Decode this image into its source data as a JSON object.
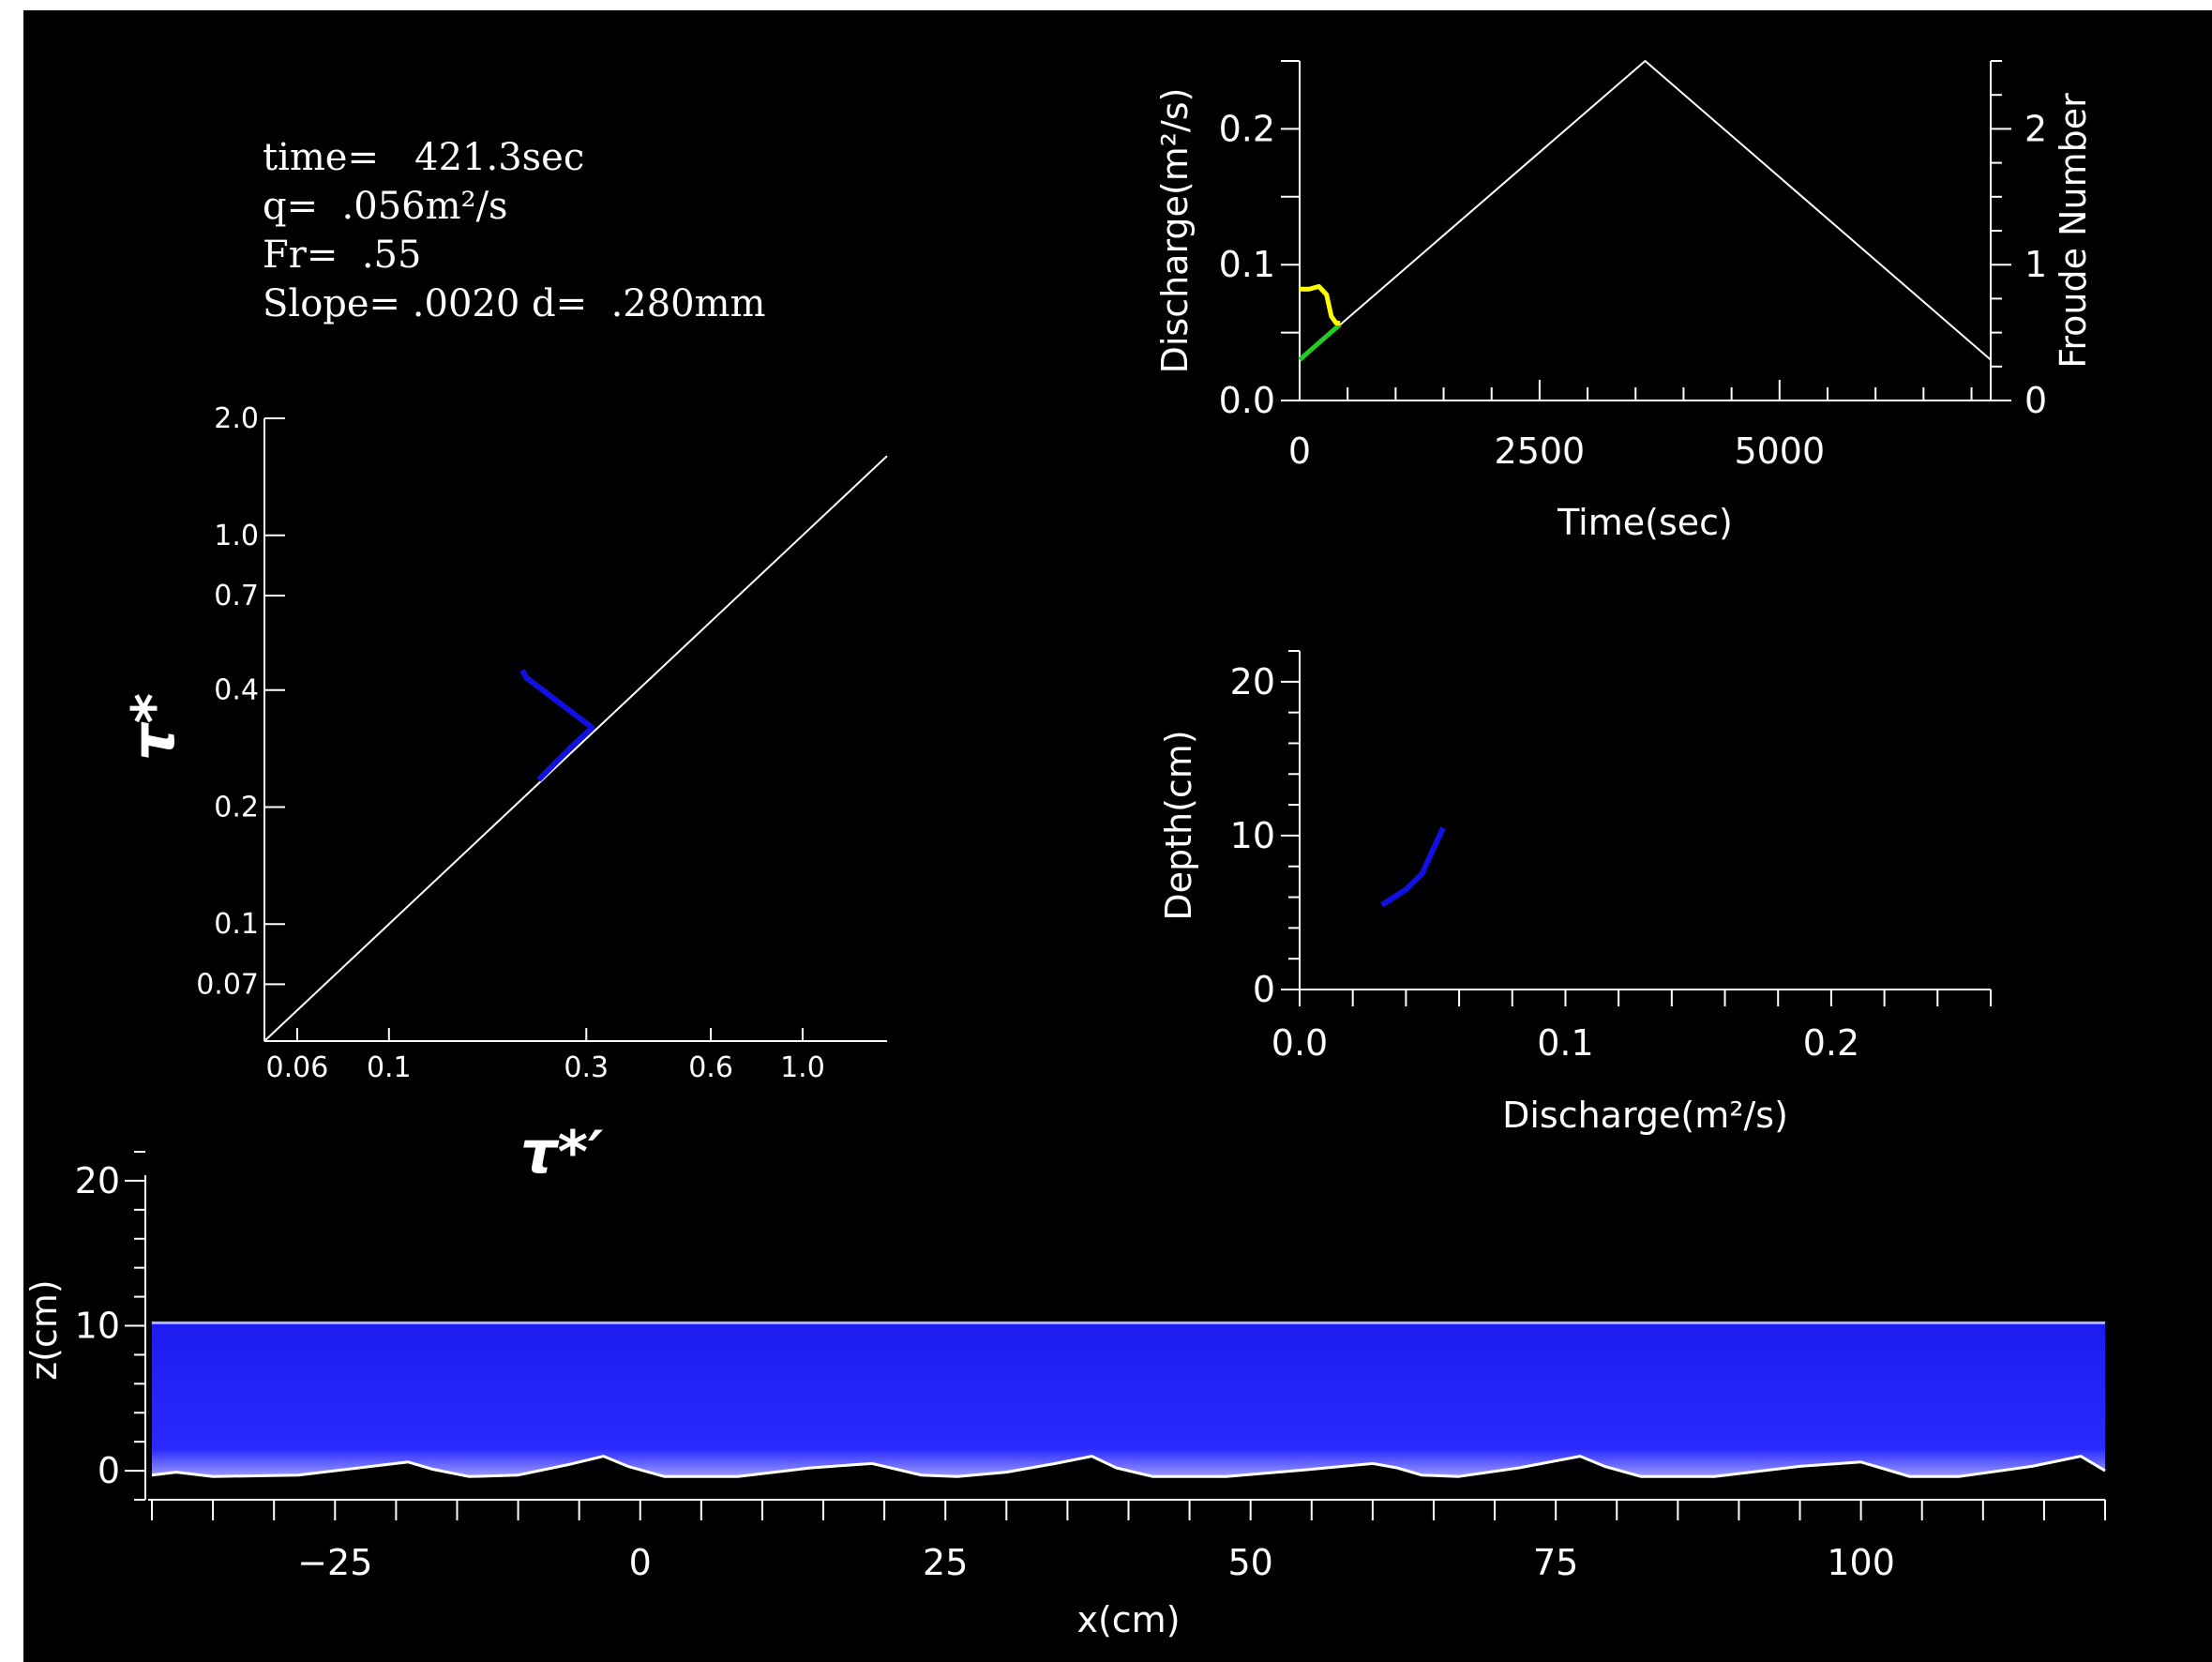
{
  "info": {
    "time_line": "time=   421.3sec",
    "q_line": "q=  .056m²/s",
    "fr_line": "Fr=  .55",
    "slope_line": "Slope= .0020 d=  .280mm"
  },
  "colors": {
    "background": "#000000",
    "axes": "#ffffff",
    "water": "#1a1aff",
    "path_blue": "#1010e0",
    "discharge_line": "#ffffff",
    "froude_yellow": "#ffff00",
    "froude_green": "#22cc22"
  },
  "chart_data": [
    {
      "id": "shields",
      "type": "line",
      "title": "",
      "xlabel": "τ*′",
      "ylabel": "τ*",
      "xscale": "log",
      "yscale": "log",
      "xlim": [
        0.05,
        1.6
      ],
      "ylim": [
        0.05,
        2.0
      ],
      "xticks": [
        0.06,
        0.1,
        0.3,
        0.6,
        1.0
      ],
      "xtick_labels": [
        "0.06",
        "0.1",
        "0.3",
        "0.6",
        "1.0"
      ],
      "yticks": [
        0.07,
        0.1,
        0.2,
        0.4,
        0.7,
        1.0,
        2.0
      ],
      "ytick_labels": [
        "0.07",
        "0.1",
        "0.2",
        "0.4",
        "0.7",
        "1.0",
        "2.0"
      ],
      "reference_line": {
        "x": [
          0.05,
          1.6
        ],
        "y": [
          0.05,
          1.6
        ]
      },
      "series": [
        {
          "color": "#1010e0",
          "x": [
            0.23,
            0.28,
            0.31,
            0.215,
            0.21
          ],
          "y": [
            0.235,
            0.29,
            0.32,
            0.43,
            0.45
          ]
        }
      ]
    },
    {
      "id": "hydrograph",
      "type": "line",
      "title": "",
      "xlabel": "Time(sec)",
      "ylabel": "Discharge(m²/s)",
      "y2label": "Froude Number",
      "xlim": [
        0,
        7200
      ],
      "ylim": [
        0,
        0.25
      ],
      "y2lim": [
        0,
        2.5
      ],
      "xticks": [
        0,
        2500,
        5000
      ],
      "yticks": [
        0.0,
        0.1,
        0.2
      ],
      "ytick_labels": [
        "0.0",
        "0.1",
        "0.2"
      ],
      "y2ticks": [
        0,
        1,
        2
      ],
      "series": [
        {
          "axis": "left",
          "color": "#ffffff",
          "x": [
            0,
            3600,
            7200
          ],
          "y": [
            0.03,
            0.25,
            0.03
          ]
        },
        {
          "axis": "left",
          "color": "#22cc22",
          "x": [
            0,
            421.3
          ],
          "y": [
            0.03,
            0.056
          ]
        },
        {
          "axis": "right",
          "color": "#ffff00",
          "x": [
            0,
            100,
            200,
            280,
            330,
            380,
            421.3
          ],
          "y": [
            0.82,
            0.82,
            0.84,
            0.78,
            0.62,
            0.57,
            0.57
          ]
        }
      ]
    },
    {
      "id": "depth_discharge",
      "type": "line",
      "title": "",
      "xlabel": "Discharge(m²/s)",
      "ylabel": "Depth(cm)",
      "xlim": [
        0,
        0.26
      ],
      "ylim": [
        0,
        22
      ],
      "xticks": [
        0.0,
        0.1,
        0.2
      ],
      "xtick_labels": [
        "0.0",
        "0.1",
        "0.2"
      ],
      "yticks": [
        0,
        10,
        20
      ],
      "series": [
        {
          "color": "#1010e0",
          "x": [
            0.031,
            0.04,
            0.046,
            0.05,
            0.054
          ],
          "y": [
            5.5,
            6.5,
            7.5,
            9.0,
            10.5
          ]
        }
      ]
    },
    {
      "id": "bed_profile",
      "type": "area",
      "title": "",
      "xlabel": "x(cm)",
      "ylabel": "z(cm)",
      "xlim": [
        -40,
        120
      ],
      "ylim": [
        -2,
        22
      ],
      "xticks": [
        -25,
        0,
        25,
        50,
        75,
        100
      ],
      "xtick_labels": [
        "−25",
        "0",
        "25",
        "50",
        "75",
        "100"
      ],
      "yticks": [
        0,
        10,
        20
      ],
      "water_surface": 10.2,
      "bed": {
        "x": [
          -40,
          -38,
          -35,
          -28,
          -22,
          -19,
          -17,
          -14,
          -10,
          -6,
          -3,
          -1,
          2,
          8,
          14,
          19,
          21,
          23,
          26,
          30,
          34,
          37,
          39,
          42,
          48,
          55,
          60,
          62,
          64,
          67,
          72,
          77,
          79,
          82,
          88,
          95,
          100,
          102,
          104,
          108,
          114,
          118,
          120
        ],
        "y": [
          -0.3,
          -0.1,
          -0.4,
          -0.3,
          0.3,
          0.6,
          0.1,
          -0.4,
          -0.3,
          0.4,
          1.0,
          0.3,
          -0.4,
          -0.4,
          0.2,
          0.5,
          0.1,
          -0.3,
          -0.4,
          -0.1,
          0.5,
          1.0,
          0.2,
          -0.4,
          -0.4,
          0.1,
          0.5,
          0.2,
          -0.3,
          -0.4,
          0.2,
          1.0,
          0.3,
          -0.4,
          -0.4,
          0.3,
          0.6,
          0.1,
          -0.4,
          -0.4,
          0.3,
          1.0,
          0.0
        ]
      }
    }
  ]
}
